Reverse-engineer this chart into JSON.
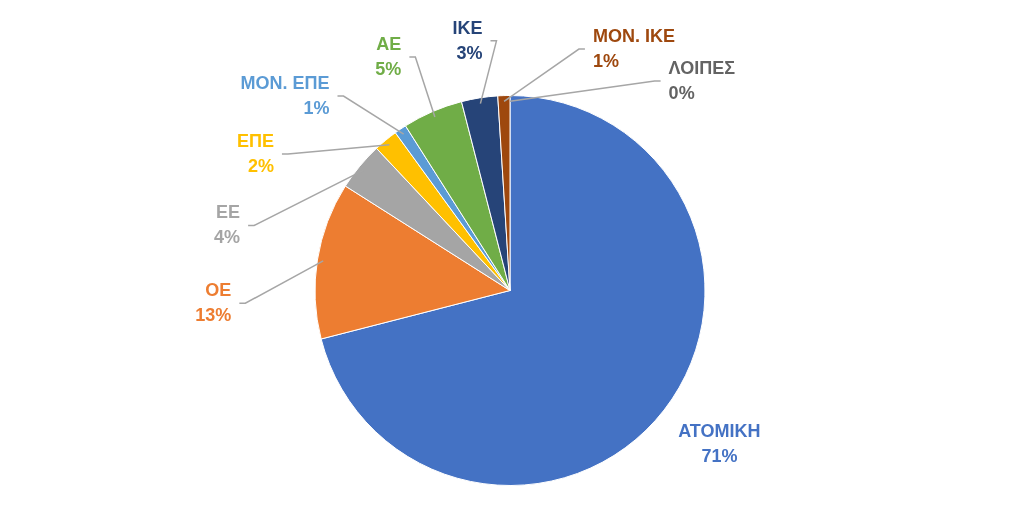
{
  "chart_data": {
    "type": "pie",
    "categories": [
      "ΑΤΟΜΙΚΗ",
      "ΟΕ",
      "ΕΕ",
      "ΕΠΕ",
      "ΜΟΝ. ΕΠΕ",
      "ΑΕ",
      "ΙΚΕ",
      "ΜΟΝ. ΙΚΕ",
      "ΛΟΙΠΕΣ"
    ],
    "values": [
      71,
      13,
      4,
      2,
      1,
      5,
      3,
      1,
      0
    ],
    "value_labels": [
      "71%",
      "13%",
      "4%",
      "2%",
      "1%",
      "5%",
      "3%",
      "1%",
      "0%"
    ],
    "colors": [
      "#4472c4",
      "#ed7d31",
      "#a5a5a5",
      "#ffc000",
      "#5b9bd5",
      "#70ad47",
      "#264478",
      "#9e480e",
      "#636363"
    ]
  }
}
